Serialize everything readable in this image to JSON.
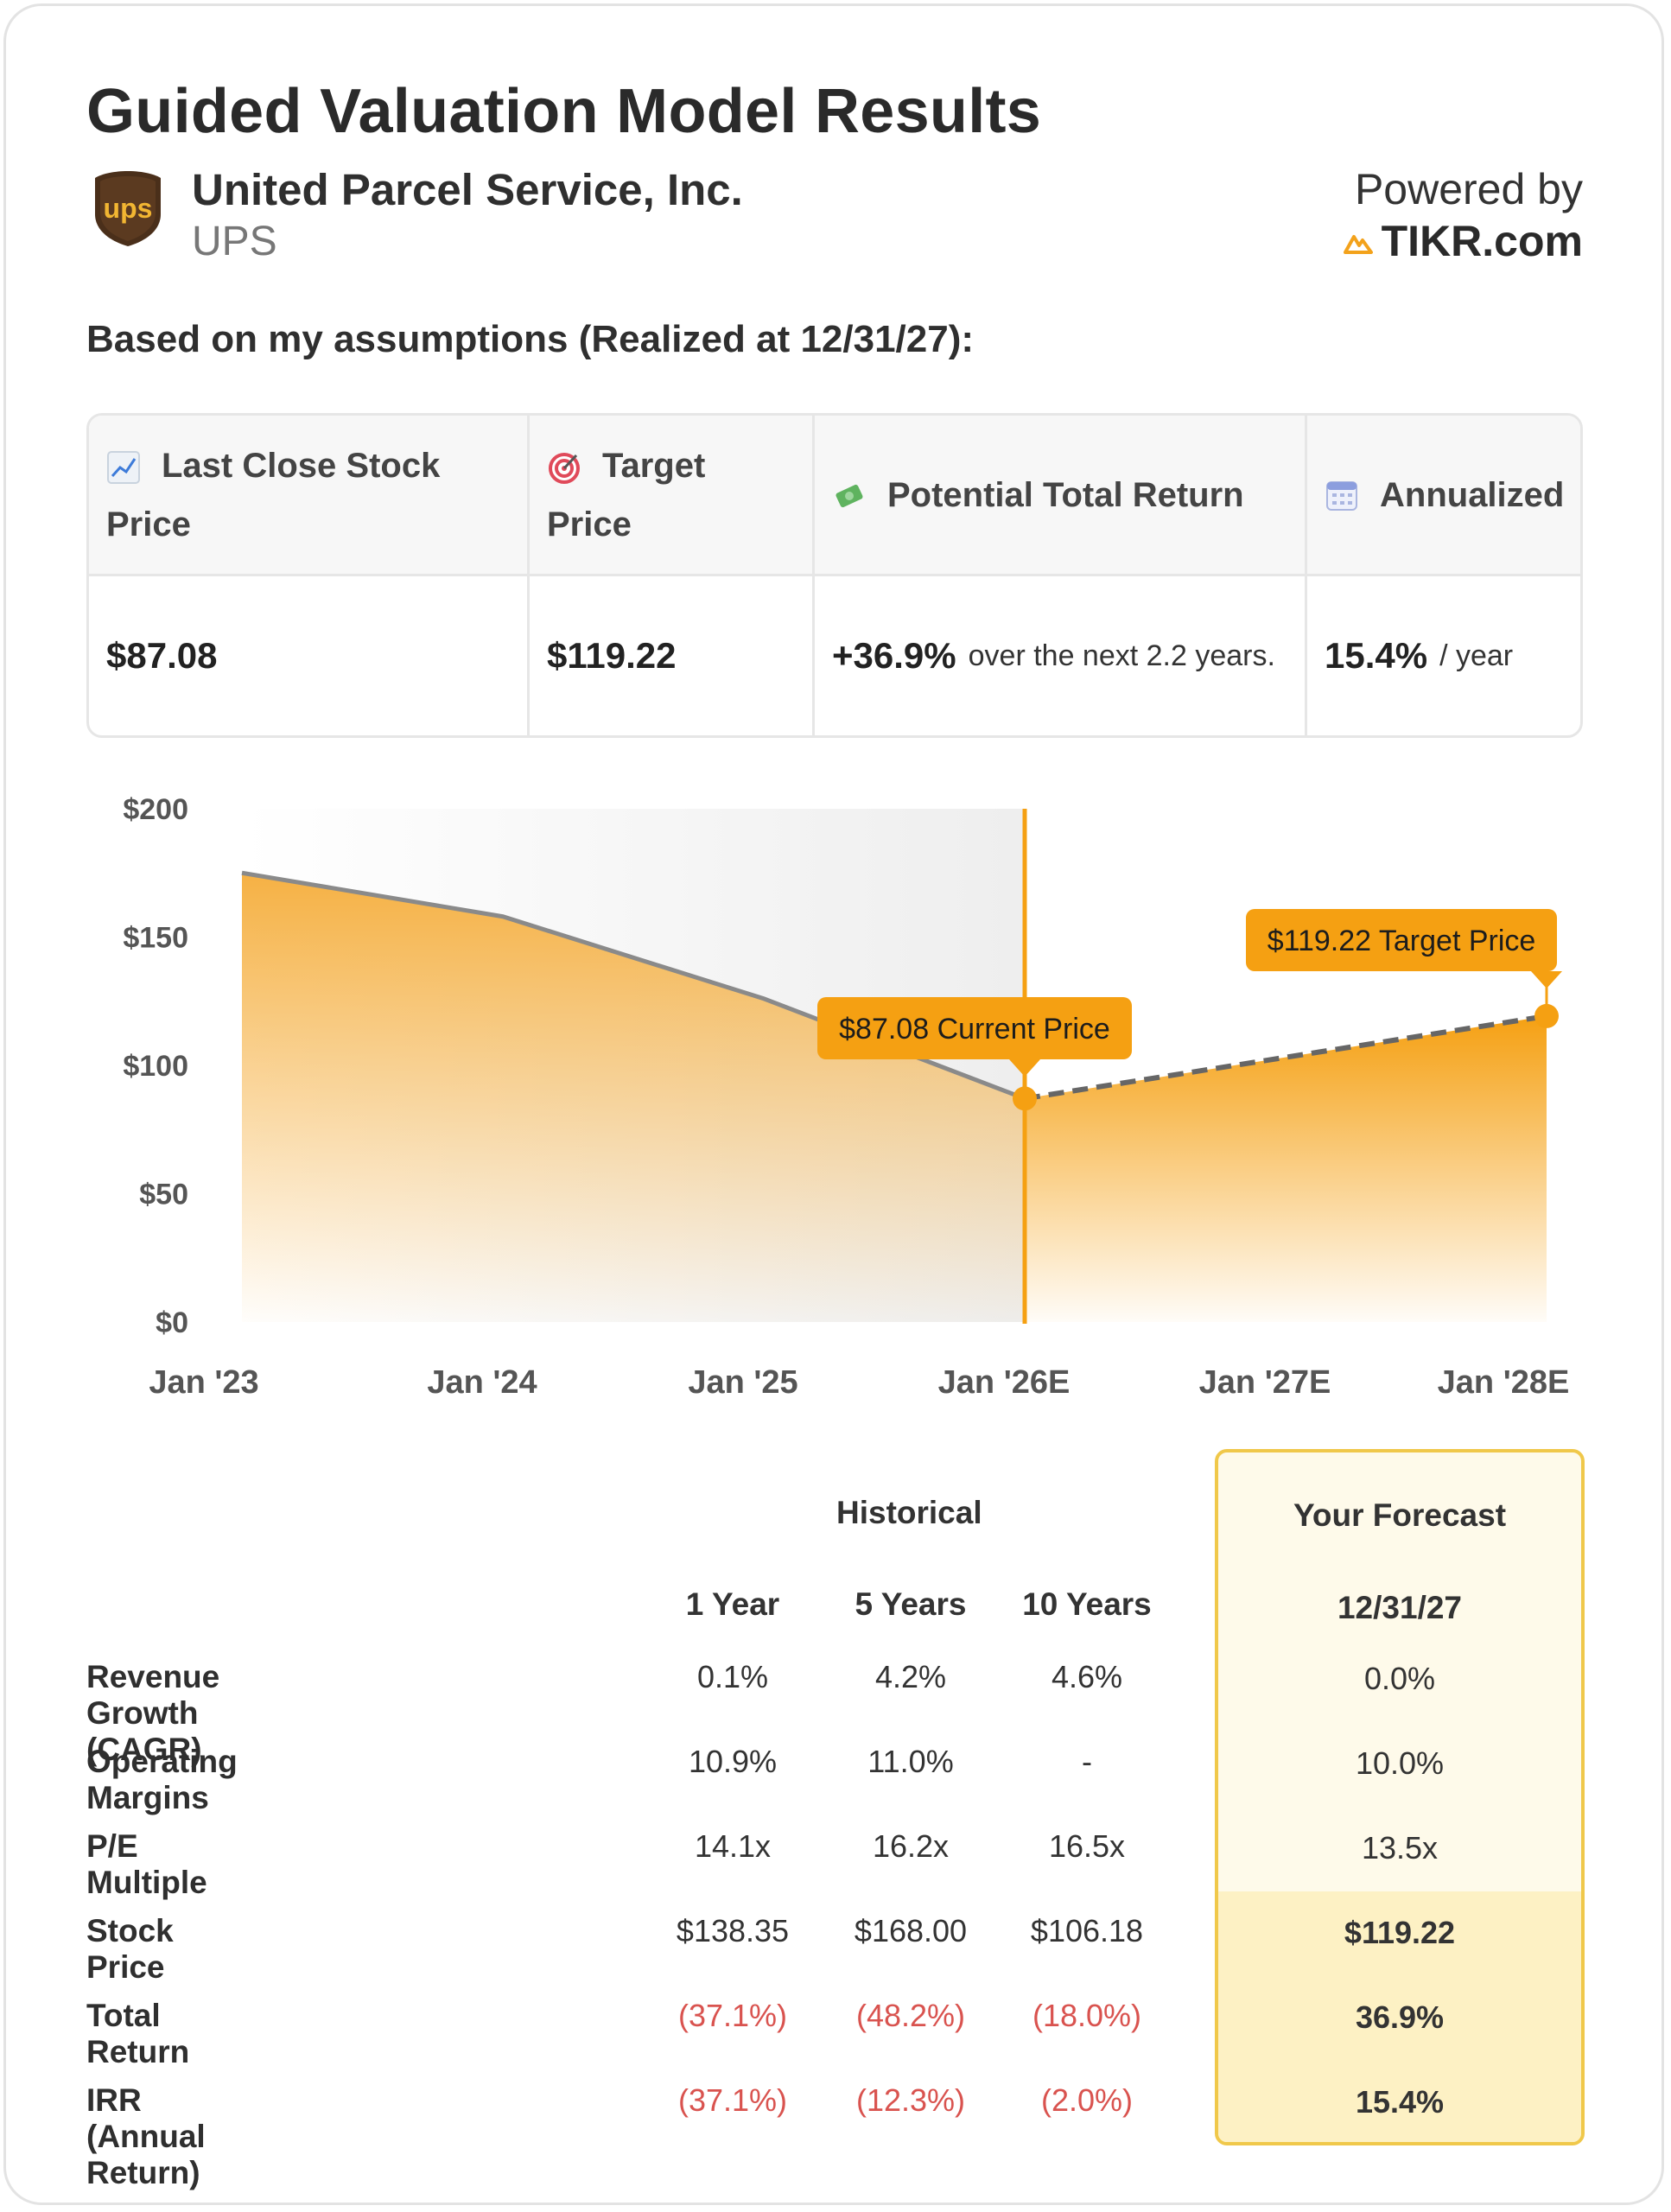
{
  "header": {
    "title": "Guided Valuation Model Results",
    "company_name": "United Parcel Service, Inc.",
    "ticker": "UPS",
    "logo_text": "ups",
    "powered_by": "Powered by",
    "brand": "TIKR.com"
  },
  "assumptions_heading": "Based on my assumptions (Realized at 12/31/27):",
  "summary": {
    "last_close_label_1": "Last Close Stock",
    "last_close_label_2": "Price",
    "target_label_1": "Target",
    "target_label_2": "Price",
    "potential_label": "Potential Total Return",
    "annualized_label": "Annualized",
    "last_close_value": "$87.08",
    "target_value": "$119.22",
    "potential_value": "+36.9%",
    "potential_sub": "over the next 2.2 years.",
    "annualized_value": "15.4%",
    "annualized_sub": "/ year"
  },
  "chart_data": {
    "type": "area",
    "x": [
      "Jan '23",
      "Jan '24",
      "Jan '25",
      "Jan '26E",
      "Jan '27E",
      "Jan '28E"
    ],
    "historical": [
      {
        "x": "Jan '23",
        "y": 175
      },
      {
        "x": "Jan '24",
        "y": 158
      },
      {
        "x": "Jan '25",
        "y": 126
      },
      {
        "x": "Jan '26E",
        "y": 87.08
      }
    ],
    "forecast": [
      {
        "x": "Jan '26E",
        "y": 87.08
      },
      {
        "x": "Jan '28E",
        "y": 119.22
      }
    ],
    "y_ticks": [
      "$200",
      "$150",
      "$100",
      "$50",
      "$0"
    ],
    "ylim": [
      0,
      200
    ],
    "current_price_label": "$87.08 Current Price",
    "target_price_label": "$119.22 Target Price",
    "colors": {
      "fill": "#f6a623",
      "line": "#8a8a8a",
      "marker": "#f5a012"
    }
  },
  "metrics": {
    "historical_label": "Historical",
    "forecast_label": "Your Forecast",
    "columns": [
      "1 Year",
      "5 Years",
      "10 Years"
    ],
    "forecast_date": "12/31/27",
    "rows": [
      {
        "label": "Revenue Growth (CAGR)",
        "values": [
          "0.1%",
          "4.2%",
          "4.6%"
        ],
        "forecast": "0.0%"
      },
      {
        "label": "Operating Margins",
        "values": [
          "10.9%",
          "11.0%",
          "-"
        ],
        "forecast": "10.0%"
      },
      {
        "label": "P/E Multiple",
        "values": [
          "14.1x",
          "16.2x",
          "16.5x"
        ],
        "forecast": "13.5x"
      },
      {
        "label": "Stock Price",
        "values": [
          "$138.35",
          "$168.00",
          "$106.18"
        ],
        "forecast": "$119.22"
      },
      {
        "label": "Total Return",
        "values": [
          "(37.1%)",
          "(48.2%)",
          "(18.0%)"
        ],
        "forecast": "36.9%"
      },
      {
        "label": "IRR (Annual Return)",
        "values": [
          "(37.1%)",
          "(12.3%)",
          "(2.0%)"
        ],
        "forecast": "15.4%"
      }
    ]
  }
}
